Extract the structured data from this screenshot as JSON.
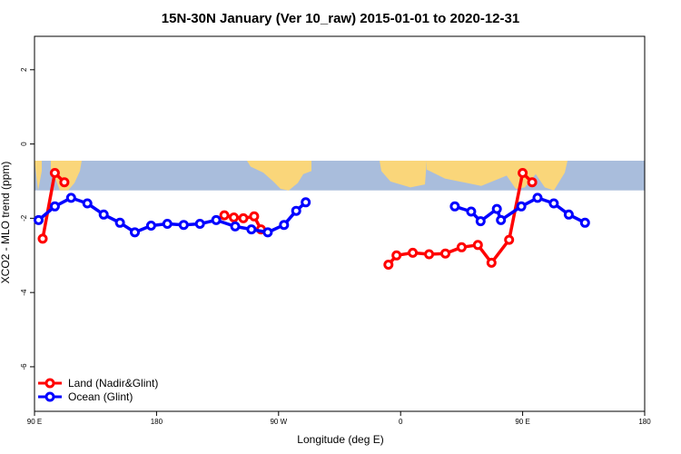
{
  "chart_data": {
    "type": "line",
    "title": "15N-30N January (Ver 10_raw)   2015-01-01 to 2020-12-31",
    "xlabel": "Longitude (deg E)",
    "ylabel": "XCO2 - MLO trend (ppm)",
    "xlim": [
      90,
      450
    ],
    "ylim": [
      -7.2,
      2.9
    ],
    "x_ticks": [
      {
        "value": 90,
        "label": "90 E"
      },
      {
        "value": 180,
        "label": "180"
      },
      {
        "value": 270,
        "label": "90 W"
      },
      {
        "value": 360,
        "label": "0"
      },
      {
        "value": 450,
        "label": "90 E"
      },
      {
        "value": 540,
        "label": "180"
      }
    ],
    "y_ticks": [
      {
        "value": 2,
        "label": "2"
      },
      {
        "value": 0,
        "label": "0"
      },
      {
        "value": -2,
        "label": "-2"
      },
      {
        "value": -4,
        "label": "-4"
      },
      {
        "value": -6,
        "label": "-6"
      }
    ],
    "map_band": {
      "lat_range": "15N-30N",
      "y_range": [
        -1.25,
        -0.45
      ]
    },
    "legend_position": "bottom-left",
    "series": [
      {
        "name": "Land (Nadir&Glint)",
        "color": "#ff0000",
        "segments": [
          [
            [
              96,
              -2.55
            ],
            [
              105,
              -0.78
            ],
            [
              112,
              -1.03
            ]
          ],
          [
            [
              230,
              -1.92
            ],
            [
              237,
              -1.98
            ],
            [
              244,
              -2.0
            ],
            [
              252,
              -1.95
            ],
            [
              257,
              -2.3
            ]
          ],
          [
            [
              351,
              -3.25
            ],
            [
              357,
              -3.0
            ],
            [
              369,
              -2.93
            ],
            [
              381,
              -2.97
            ],
            [
              393,
              -2.95
            ],
            [
              405,
              -2.78
            ],
            [
              417,
              -2.72
            ],
            [
              427,
              -3.2
            ],
            [
              440,
              -2.58
            ],
            [
              450,
              -0.78
            ],
            [
              457,
              -1.03
            ]
          ]
        ]
      },
      {
        "name": "Ocean (Glint)",
        "color": "#0000ff",
        "segments": [
          [
            [
              93,
              -2.05
            ],
            [
              105,
              -1.68
            ],
            [
              117,
              -1.45
            ],
            [
              129,
              -1.6
            ],
            [
              141,
              -1.9
            ],
            [
              153,
              -2.12
            ],
            [
              164,
              -2.38
            ],
            [
              176,
              -2.2
            ],
            [
              188,
              -2.15
            ],
            [
              200,
              -2.18
            ],
            [
              212,
              -2.15
            ],
            [
              224,
              -2.05
            ],
            [
              238,
              -2.22
            ],
            [
              250,
              -2.3
            ],
            [
              262,
              -2.38
            ],
            [
              274,
              -2.18
            ],
            [
              283,
              -1.8
            ],
            [
              290,
              -1.57
            ]
          ],
          [
            [
              400,
              -1.68
            ],
            [
              412,
              -1.82
            ],
            [
              419,
              -2.08
            ],
            [
              431,
              -1.75
            ],
            [
              434,
              -2.05
            ],
            [
              449,
              -1.68
            ],
            [
              461,
              -1.45
            ],
            [
              473,
              -1.6
            ],
            [
              484,
              -1.9
            ],
            [
              496,
              -2.12
            ]
          ]
        ]
      }
    ]
  }
}
